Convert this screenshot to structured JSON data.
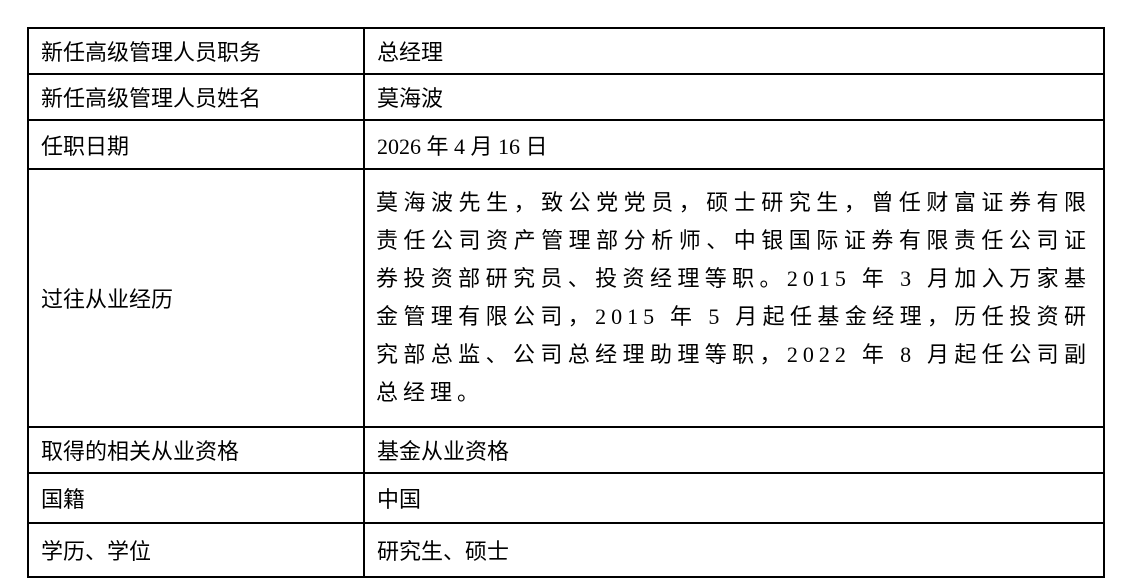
{
  "page": {
    "background": "#ffffff",
    "text_color": "#000000",
    "border_color": "#000000"
  },
  "table": {
    "rows": [
      {
        "label": "新任高级管理人员职务",
        "value": "总经理"
      },
      {
        "label": "新任高级管理人员姓名",
        "value": "莫海波"
      },
      {
        "label": "任职日期",
        "value": "2026 年 4 月 16 日"
      },
      {
        "label": "过往从业经历",
        "value": "莫海波先生，致公党党员，硕士研究生，曾任财富证券有限责任公司资产管理部分析师、中银国际证券有限责任公司证券投资部研究员、投资经理等职。2015 年 3 月加入万家基金管理有限公司，2015 年 5 月起任基金经理，历任投资研究部总监、公司总经理助理等职，2022 年 8 月起任公司副总经理。"
      },
      {
        "label": "取得的相关从业资格",
        "value": "基金从业资格"
      },
      {
        "label": "国籍",
        "value": "中国"
      },
      {
        "label": "学历、学位",
        "value": "研究生、硕士"
      }
    ]
  }
}
